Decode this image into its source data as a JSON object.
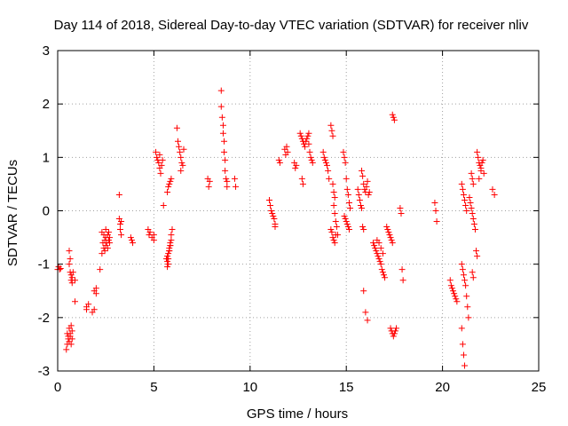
{
  "chart_data": {
    "type": "scatter",
    "title": "Day 114 of 2018, Sidereal Day-to-day VTEC variation (SDTVAR) for receiver nliv",
    "xlabel": "GPS time / hours",
    "ylabel": "SDTVAR / TECUs",
    "xlim": [
      0,
      25
    ],
    "ylim": [
      -3,
      3
    ],
    "xticks": [
      0,
      5,
      10,
      15,
      20,
      25
    ],
    "yticks": [
      -3,
      -2,
      -1,
      0,
      1,
      2,
      3
    ],
    "grid": true,
    "marker": "+",
    "series": [
      {
        "name": "SDTVAR",
        "color": "#ff0000",
        "x": [
          0.0,
          0.05,
          0.1,
          0.15,
          0.45,
          0.5,
          0.5,
          0.55,
          0.55,
          0.6,
          0.6,
          0.65,
          0.65,
          0.7,
          0.7,
          0.75,
          0.75,
          0.6,
          0.65,
          0.7,
          0.6,
          0.65,
          0.7,
          0.75,
          0.75,
          0.8,
          0.9,
          0.9,
          1.5,
          1.5,
          1.6,
          1.8,
          1.9,
          1.9,
          2.0,
          2.0,
          2.2,
          2.3,
          2.3,
          2.35,
          2.4,
          2.4,
          2.45,
          2.45,
          2.5,
          2.5,
          2.5,
          2.55,
          2.6,
          2.6,
          2.65,
          2.65,
          2.7,
          2.7,
          3.2,
          3.2,
          3.25,
          3.25,
          3.3,
          3.3,
          3.8,
          3.85,
          3.9,
          4.7,
          4.75,
          4.8,
          4.9,
          5.0,
          5.0,
          5.1,
          5.15,
          5.2,
          5.25,
          5.3,
          5.35,
          5.4,
          5.3,
          5.45,
          5.5,
          5.65,
          5.7,
          5.7,
          5.75,
          5.75,
          5.8,
          5.8,
          5.85,
          5.85,
          5.9,
          5.9,
          5.7,
          5.75,
          5.8,
          5.85,
          5.9,
          5.95,
          5.7,
          5.75,
          5.8,
          5.85,
          6.2,
          6.25,
          6.3,
          6.35,
          6.4,
          6.45,
          6.5,
          6.55,
          6.4,
          7.8,
          7.85,
          7.9,
          8.5,
          8.5,
          8.55,
          8.6,
          8.6,
          8.65,
          8.65,
          8.7,
          8.7,
          8.75,
          8.8,
          8.8,
          9.2,
          9.25,
          11.0,
          11.05,
          11.1,
          11.15,
          11.2,
          11.25,
          11.3,
          11.3,
          11.5,
          11.55,
          11.8,
          11.85,
          11.9,
          11.95,
          12.3,
          12.35,
          12.4,
          12.6,
          12.65,
          12.7,
          12.75,
          12.8,
          12.85,
          12.9,
          12.95,
          13.0,
          13.05,
          12.7,
          12.75,
          13.05,
          13.1,
          13.15,
          13.2,
          13.25,
          13.8,
          13.85,
          13.9,
          13.95,
          14.0,
          14.05,
          14.1,
          14.2,
          14.25,
          14.3,
          14.35,
          14.4,
          14.45,
          14.5,
          14.55,
          14.2,
          14.25,
          14.3,
          14.35,
          14.4,
          14.45,
          14.3,
          14.35,
          14.4,
          14.85,
          14.9,
          14.95,
          15.0,
          15.05,
          15.1,
          15.15,
          15.2,
          14.9,
          14.95,
          15.0,
          15.05,
          15.1,
          15.15,
          15.6,
          15.65,
          15.7,
          15.75,
          15.8,
          15.85,
          15.9,
          15.8,
          15.85,
          15.9,
          15.95,
          16.0,
          16.05,
          16.1,
          16.15,
          16.2,
          15.9,
          16.0,
          16.1,
          16.4,
          16.45,
          16.5,
          16.55,
          16.6,
          16.65,
          16.7,
          16.75,
          16.8,
          16.85,
          16.9,
          16.95,
          17.0,
          16.6,
          16.7,
          16.8,
          16.9,
          17.1,
          17.15,
          17.2,
          17.25,
          17.3,
          17.35,
          17.4,
          17.3,
          17.35,
          17.4,
          17.45,
          17.5,
          17.55,
          17.6,
          17.4,
          17.45,
          17.5,
          17.8,
          17.85,
          17.9,
          17.95,
          19.6,
          19.65,
          19.7,
          20.4,
          20.45,
          20.5,
          20.55,
          20.6,
          20.65,
          20.7,
          20.75,
          21.0,
          21.05,
          21.1,
          21.15,
          21.2,
          21.25,
          21.3,
          21.35,
          21.0,
          21.05,
          21.1,
          21.15,
          21.2,
          21.25,
          21.0,
          21.05,
          21.1,
          21.15,
          21.4,
          21.45,
          21.5,
          21.55,
          21.6,
          21.65,
          21.7,
          21.75,
          21.8,
          21.55,
          21.6,
          21.5,
          21.55,
          21.6,
          21.8,
          21.85,
          21.9,
          21.95,
          22.0,
          22.05,
          22.1,
          22.15,
          21.9,
          22.0,
          22.6,
          22.7
        ],
        "y": [
          -1.1,
          -1.05,
          -1.1,
          -1.08,
          -2.6,
          -2.5,
          -2.3,
          -2.4,
          -2.35,
          -2.45,
          -2.2,
          -2.35,
          -2.3,
          -2.5,
          -2.15,
          -2.25,
          -2.4,
          -1.0,
          -1.15,
          -1.3,
          -0.75,
          -0.9,
          -1.2,
          -1.35,
          -1.25,
          -1.15,
          -1.3,
          -1.7,
          -1.8,
          -1.85,
          -1.75,
          -1.9,
          -1.85,
          -1.5,
          -1.45,
          -1.55,
          -1.1,
          -0.8,
          -0.4,
          -0.6,
          -0.7,
          -0.45,
          -0.55,
          -0.75,
          -0.65,
          -0.5,
          -0.35,
          -0.6,
          -0.45,
          -0.7,
          -0.55,
          -0.4,
          -0.6,
          -0.5,
          0.3,
          -0.15,
          -0.25,
          -0.35,
          -0.2,
          -0.45,
          -0.5,
          -0.55,
          -0.6,
          -0.35,
          -0.45,
          -0.4,
          -0.5,
          -0.55,
          -0.45,
          1.1,
          1.0,
          0.95,
          0.9,
          0.8,
          0.7,
          0.85,
          1.05,
          0.95,
          0.1,
          -0.9,
          -0.85,
          -0.95,
          -1.0,
          -0.8,
          -0.75,
          -0.7,
          -0.65,
          -0.6,
          -0.55,
          -0.45,
          0.35,
          0.45,
          0.5,
          0.55,
          0.6,
          -0.35,
          -1.05,
          -0.9,
          -0.75,
          -0.65,
          1.55,
          1.3,
          1.2,
          1.1,
          1.0,
          0.9,
          0.85,
          1.15,
          0.75,
          0.6,
          0.45,
          0.55,
          2.25,
          1.95,
          1.75,
          1.6,
          1.45,
          1.3,
          1.1,
          0.95,
          0.75,
          0.6,
          0.45,
          0.55,
          0.6,
          0.45,
          0.2,
          0.1,
          0.0,
          -0.05,
          -0.1,
          -0.15,
          -0.25,
          -0.3,
          0.95,
          0.9,
          1.15,
          1.05,
          1.2,
          1.1,
          0.9,
          0.8,
          0.85,
          1.45,
          1.4,
          1.35,
          1.3,
          1.25,
          1.2,
          1.3,
          1.35,
          1.4,
          1.45,
          0.6,
          0.5,
          1.25,
          1.1,
          1.0,
          0.95,
          0.9,
          1.1,
          1.0,
          0.95,
          0.9,
          0.85,
          0.75,
          0.6,
          1.6,
          1.5,
          1.4,
          0.1,
          -0.05,
          -0.2,
          -0.3,
          -0.45,
          -0.35,
          -0.4,
          -0.5,
          -0.55,
          -0.6,
          -0.45,
          0.5,
          0.35,
          0.25,
          1.1,
          1.0,
          0.9,
          0.6,
          0.4,
          0.3,
          0.15,
          0.05,
          -0.1,
          -0.15,
          -0.2,
          -0.25,
          -0.3,
          -0.35,
          0.4,
          0.3,
          0.2,
          0.1,
          0.05,
          -0.3,
          -0.35,
          0.75,
          0.65,
          0.5,
          0.4,
          0.35,
          0.45,
          0.55,
          0.3,
          0.35,
          -1.5,
          -1.9,
          -2.05,
          -0.6,
          -0.65,
          -0.7,
          -0.75,
          -0.8,
          -0.85,
          -0.9,
          -0.95,
          -1.0,
          -1.1,
          -1.15,
          -1.2,
          -1.25,
          -0.55,
          -0.6,
          -0.7,
          -0.8,
          -0.3,
          -0.35,
          -0.4,
          -0.45,
          -0.5,
          -0.55,
          -0.6,
          -2.2,
          -2.25,
          -2.3,
          -2.35,
          -2.3,
          -2.25,
          -2.2,
          1.8,
          1.75,
          1.7,
          0.05,
          -0.05,
          -1.1,
          -1.3,
          0.15,
          0.0,
          -0.2,
          -1.3,
          -1.4,
          -1.45,
          -1.5,
          -1.55,
          -1.6,
          -1.65,
          -1.7,
          -1.0,
          -1.1,
          -1.2,
          -1.3,
          -1.4,
          -1.6,
          -1.8,
          -2.0,
          0.5,
          0.4,
          0.3,
          0.2,
          0.1,
          0.0,
          -2.2,
          -2.5,
          -2.7,
          -2.9,
          0.25,
          0.15,
          0.05,
          -0.05,
          -0.15,
          -0.25,
          -0.35,
          -0.75,
          -0.85,
          -1.15,
          -1.25,
          0.7,
          0.6,
          0.5,
          1.1,
          1.0,
          0.9,
          0.85,
          0.8,
          0.9,
          0.95,
          0.7,
          0.6,
          0.75,
          0.4,
          0.3
        ]
      }
    ]
  }
}
